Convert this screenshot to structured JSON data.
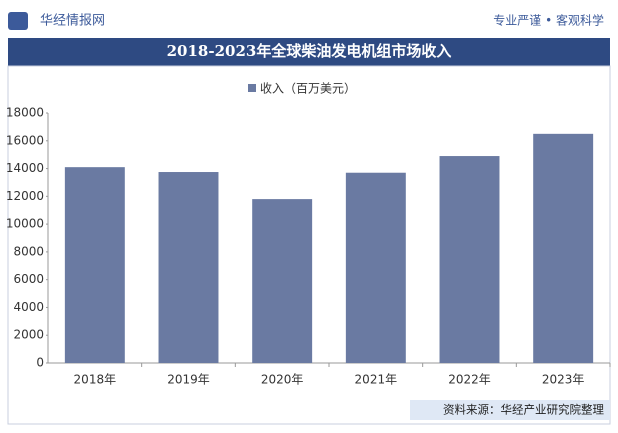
{
  "header": {
    "brand": "华经情报网",
    "slogan": "专业严谨 • 客观科学"
  },
  "chart_data": {
    "type": "bar",
    "title": "2018-2023年全球柴油发电机组市场收入",
    "categories": [
      "2018年",
      "2019年",
      "2020年",
      "2021年",
      "2022年",
      "2023年"
    ],
    "series": [
      {
        "name": "收入（百万美元）",
        "color": "#6a7aa2",
        "values": [
          14100,
          13750,
          11800,
          13700,
          14900,
          16500
        ]
      }
    ],
    "ylim": [
      0,
      18000
    ],
    "yticks": [
      0,
      2000,
      4000,
      6000,
      8000,
      10000,
      12000,
      14000,
      16000,
      18000
    ],
    "source": "资料来源：华经产业研究院整理"
  }
}
